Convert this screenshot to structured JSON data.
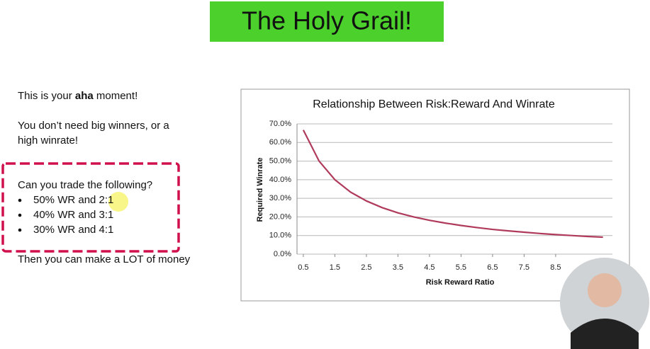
{
  "slide": {
    "title": "The Holy Grail!",
    "intro": [
      "This is your ",
      "aha",
      " moment!"
    ],
    "point": [
      "You don’t need big winners, or a",
      "high winrate!"
    ],
    "question": "Can you trade the following?",
    "bullets": [
      "50% WR and 2:1",
      "40% WR and 3:1",
      "30% WR and 4:1"
    ],
    "conclusion": "Then you can make a LOT of money"
  },
  "chart_data": {
    "type": "line",
    "title": "Relationship Between Risk:Reward And Winrate",
    "x_label": "Risk Reward Ratio",
    "y_label": "Required  Winrate",
    "x": [
      0.5,
      1,
      1.5,
      2,
      2.5,
      3,
      3.5,
      4,
      4.5,
      5,
      5.5,
      6,
      6.5,
      7,
      7.5,
      8,
      8.5,
      9,
      9.5,
      10
    ],
    "values": [
      66.7,
      50,
      40,
      33.3,
      28.6,
      25,
      22.2,
      20,
      18.2,
      16.7,
      15.4,
      14.3,
      13.3,
      12.5,
      11.8,
      11.1,
      10.5,
      10,
      9.5,
      9.1
    ],
    "color": "#b03a5b",
    "xlim": [
      0.3,
      10.3
    ],
    "xticks": [
      0.5,
      1.5,
      2.5,
      3.5,
      4.5,
      5.5,
      6.5,
      7.5,
      8.5
    ],
    "ylim": [
      0,
      70
    ],
    "yticks": [
      {
        "value": 0,
        "label": "0.0%"
      },
      {
        "value": 10,
        "label": "10.0%"
      },
      {
        "value": 20,
        "label": "20.0%"
      },
      {
        "value": 30,
        "label": "30.0%"
      },
      {
        "value": 40,
        "label": "40.0%"
      },
      {
        "value": 50,
        "label": "50.0%"
      },
      {
        "value": 60,
        "label": "60.0%"
      },
      {
        "value": 70,
        "label": "70.0%"
      }
    ],
    "grid": true
  }
}
